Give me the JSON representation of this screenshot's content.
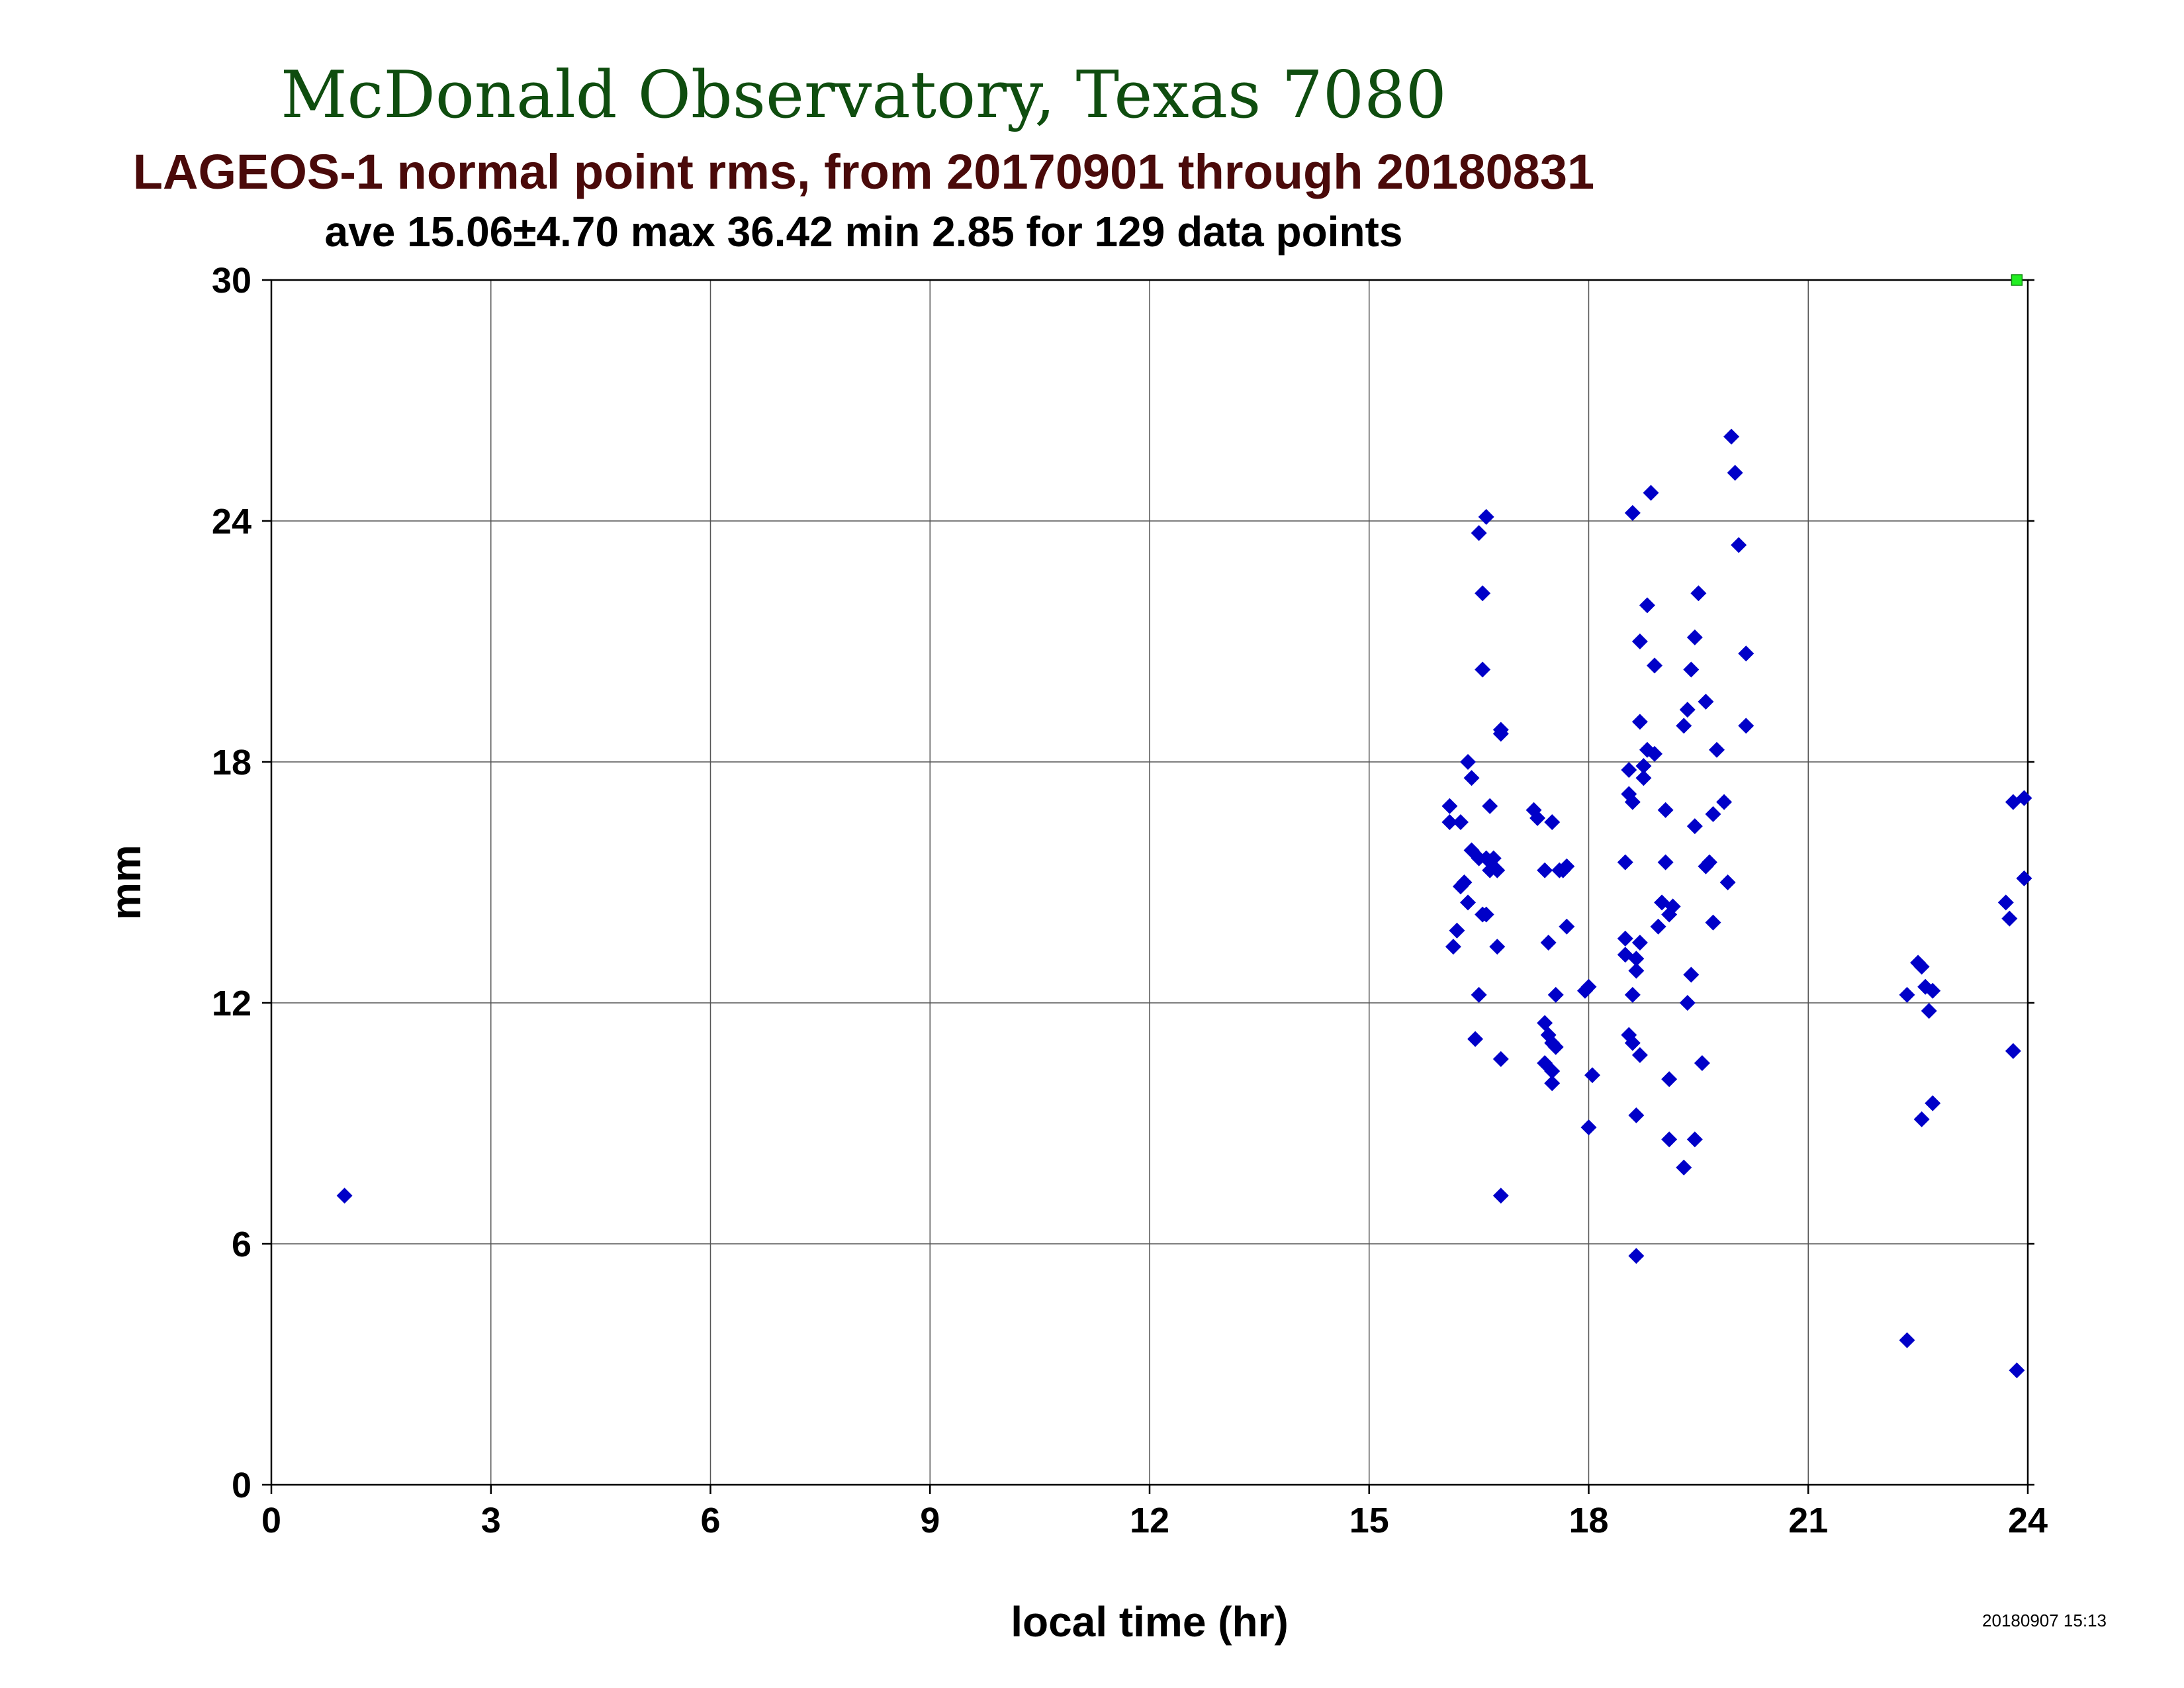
{
  "chart_data": {
    "type": "scatter",
    "title": "McDonald Observatory, Texas 7080",
    "subtitle": "LAGEOS-1 normal point rms, from 20170901 through 20180831",
    "stats_line": "ave 15.06±4.70 max 36.42 min 2.85 for 129 data points",
    "xlabel": "local time (hr)",
    "ylabel": "mm",
    "xlim": [
      0,
      24
    ],
    "ylim": [
      0,
      30
    ],
    "xticks": [
      0,
      3,
      6,
      9,
      12,
      15,
      18,
      21,
      24
    ],
    "yticks": [
      0,
      6,
      12,
      18,
      24,
      30
    ],
    "grid": true,
    "timestamp": "20180907 15:13",
    "series": [
      {
        "color": "#0000c8",
        "marker": "diamond",
        "points": [
          [
            1.0,
            7.2
          ],
          [
            16.1,
            16.5
          ],
          [
            16.1,
            16.9
          ],
          [
            16.15,
            13.4
          ],
          [
            16.2,
            13.8
          ],
          [
            16.25,
            16.5
          ],
          [
            16.25,
            14.9
          ],
          [
            16.3,
            15.0
          ],
          [
            16.35,
            14.5
          ],
          [
            16.35,
            18.0
          ],
          [
            16.4,
            15.8
          ],
          [
            16.4,
            17.6
          ],
          [
            16.45,
            11.1
          ],
          [
            16.5,
            15.6
          ],
          [
            16.5,
            23.7
          ],
          [
            16.5,
            12.2
          ],
          [
            16.55,
            22.2
          ],
          [
            16.55,
            20.3
          ],
          [
            16.55,
            14.2
          ],
          [
            16.6,
            24.1
          ],
          [
            16.6,
            14.2
          ],
          [
            16.6,
            15.6
          ],
          [
            16.65,
            16.9
          ],
          [
            16.65,
            15.3
          ],
          [
            16.7,
            15.6
          ],
          [
            16.75,
            15.3
          ],
          [
            16.75,
            13.4
          ],
          [
            16.8,
            18.8
          ],
          [
            16.8,
            18.7
          ],
          [
            16.8,
            10.6
          ],
          [
            16.8,
            7.2
          ],
          [
            17.25,
            16.8
          ],
          [
            17.3,
            16.6
          ],
          [
            17.4,
            11.5
          ],
          [
            17.4,
            15.3
          ],
          [
            17.4,
            10.5
          ],
          [
            17.45,
            11.2
          ],
          [
            17.45,
            13.5
          ],
          [
            17.5,
            16.5
          ],
          [
            17.5,
            11.0
          ],
          [
            17.5,
            10.0
          ],
          [
            17.5,
            10.3
          ],
          [
            17.55,
            10.9
          ],
          [
            17.55,
            12.2
          ],
          [
            17.6,
            15.3
          ],
          [
            17.65,
            15.3
          ],
          [
            17.7,
            15.4
          ],
          [
            17.7,
            13.9
          ],
          [
            17.95,
            12.3
          ],
          [
            18.0,
            12.4
          ],
          [
            18.0,
            8.9
          ],
          [
            18.05,
            10.2
          ],
          [
            18.5,
            13.6
          ],
          [
            18.5,
            13.2
          ],
          [
            18.5,
            15.5
          ],
          [
            18.55,
            17.2
          ],
          [
            18.55,
            17.8
          ],
          [
            18.55,
            11.2
          ],
          [
            18.6,
            24.2
          ],
          [
            18.6,
            17.0
          ],
          [
            18.6,
            12.2
          ],
          [
            18.6,
            11.0
          ],
          [
            18.65,
            13.1
          ],
          [
            18.65,
            12.8
          ],
          [
            18.65,
            9.2
          ],
          [
            18.65,
            5.7
          ],
          [
            18.7,
            13.5
          ],
          [
            18.7,
            19.0
          ],
          [
            18.7,
            21.0
          ],
          [
            18.7,
            10.7
          ],
          [
            18.75,
            17.9
          ],
          [
            18.75,
            17.6
          ],
          [
            18.8,
            18.3
          ],
          [
            18.8,
            21.9
          ],
          [
            18.85,
            24.7
          ],
          [
            18.9,
            20.4
          ],
          [
            18.9,
            18.2
          ],
          [
            18.95,
            13.9
          ],
          [
            19.0,
            14.5
          ],
          [
            19.05,
            16.8
          ],
          [
            19.05,
            15.5
          ],
          [
            19.1,
            14.2
          ],
          [
            19.1,
            10.1
          ],
          [
            19.1,
            8.6
          ],
          [
            19.15,
            14.4
          ],
          [
            19.3,
            18.9
          ],
          [
            19.3,
            7.9
          ],
          [
            19.35,
            19.3
          ],
          [
            19.35,
            12.0
          ],
          [
            19.4,
            20.3
          ],
          [
            19.4,
            12.7
          ],
          [
            19.45,
            21.1
          ],
          [
            19.45,
            16.4
          ],
          [
            19.45,
            8.6
          ],
          [
            19.5,
            22.2
          ],
          [
            19.55,
            10.5
          ],
          [
            19.6,
            15.4
          ],
          [
            19.6,
            19.5
          ],
          [
            19.65,
            15.5
          ],
          [
            19.7,
            16.7
          ],
          [
            19.7,
            14.0
          ],
          [
            19.75,
            18.3
          ],
          [
            19.85,
            17.0
          ],
          [
            19.9,
            15.0
          ],
          [
            19.95,
            26.1
          ],
          [
            20.0,
            25.2
          ],
          [
            20.05,
            23.4
          ],
          [
            20.15,
            18.9
          ],
          [
            20.15,
            20.7
          ],
          [
            22.35,
            12.2
          ],
          [
            22.35,
            3.6
          ],
          [
            22.5,
            13.0
          ],
          [
            22.55,
            9.1
          ],
          [
            22.55,
            12.9
          ],
          [
            22.6,
            12.4
          ],
          [
            22.65,
            11.8
          ],
          [
            22.7,
            12.3
          ],
          [
            22.7,
            9.5
          ],
          [
            23.7,
            14.5
          ],
          [
            23.75,
            14.1
          ],
          [
            23.8,
            10.8
          ],
          [
            23.8,
            17.0
          ],
          [
            23.85,
            2.85
          ],
          [
            23.95,
            17.1
          ],
          [
            23.95,
            15.1
          ]
        ]
      },
      {
        "color": "#22ee22",
        "marker": "square",
        "points": [
          [
            23.85,
            30.0
          ]
        ]
      }
    ]
  }
}
